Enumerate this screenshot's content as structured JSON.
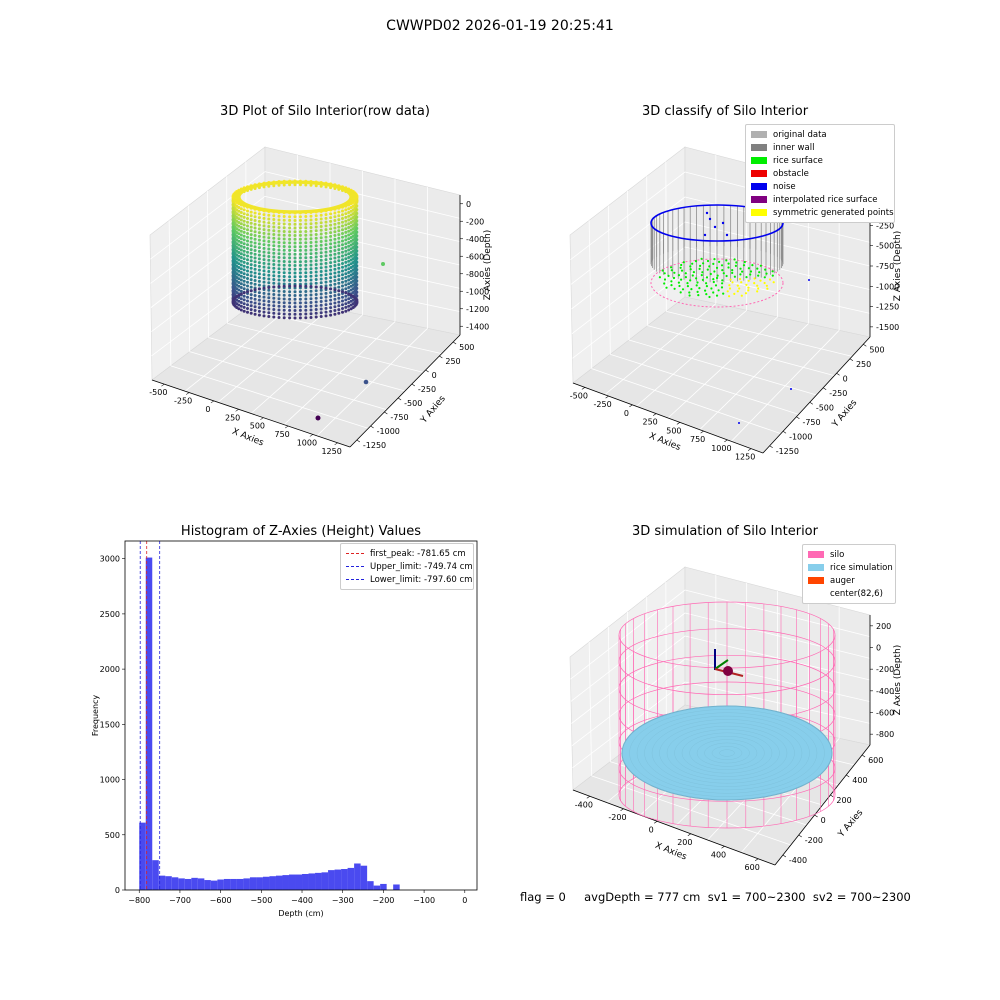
{
  "figure": {
    "suptitle": "CWWPD02 2026-01-19 20:25:41",
    "status_text": "flag = 0     avgDepth = 777 cm  sv1 = 700~2300  sv2 = 700~2300"
  },
  "chart_data": [
    {
      "type": "scatter",
      "title": "3D Plot of Silo Interior(row data)",
      "xlabel": "X Axies",
      "ylabel": "Y Axies",
      "zlabel": "Z Axies (Depth)",
      "x_ticks": [
        "-500",
        "-250",
        "0",
        "250",
        "500",
        "750",
        "1000",
        "1250"
      ],
      "y_ticks": [
        "500",
        "250",
        "0",
        "-250",
        "-500",
        "-750",
        "-1000",
        "-1250"
      ],
      "z_ticks": [
        "0",
        "-200",
        "-400",
        "-600",
        "-800",
        "-1000",
        "-1200",
        "-1400"
      ],
      "colormap": "viridis",
      "legend": "none",
      "grid": true
    },
    {
      "type": "scatter",
      "title": "3D classify of Silo Interior",
      "xlabel": "X Axies",
      "ylabel": "Y Axies",
      "zlabel": "Z Axies (Depth)",
      "x_ticks": [
        "-500",
        "-250",
        "0",
        "250",
        "500",
        "750",
        "1000",
        "1250"
      ],
      "y_ticks": [
        "500",
        "250",
        "0",
        "-250",
        "-500",
        "-750",
        "-1000",
        "-1250"
      ],
      "z_ticks": [
        "0",
        "-250",
        "-500",
        "-750",
        "-1000",
        "-1250",
        "-1500"
      ],
      "legend": "top-right",
      "grid": true,
      "series": [
        {
          "name": "original data",
          "color": "#b0b0b0"
        },
        {
          "name": "inner wall",
          "color": "#808080"
        },
        {
          "name": "rice surface",
          "color": "#00ee00"
        },
        {
          "name": "obstacle",
          "color": "#ee0000"
        },
        {
          "name": "noise",
          "color": "#0000ee"
        },
        {
          "name": "interpolated rice surface",
          "color": "#800080"
        },
        {
          "name": "symmetric generated points",
          "color": "#ffff00"
        }
      ]
    },
    {
      "type": "bar",
      "title": "Histogram of Z-Axies (Height) Values",
      "xlabel": "Depth (cm)",
      "ylabel": "Frequency",
      "xlim": [
        -835,
        30
      ],
      "ylim": [
        0,
        3160
      ],
      "x_ticks": [
        -800,
        -700,
        -600,
        -500,
        -400,
        -300,
        -200,
        -100,
        0
      ],
      "y_ticks": [
        0,
        500,
        1000,
        1500,
        2000,
        2500,
        3000
      ],
      "bar_color": "#4a4af0",
      "bin_width": 16,
      "bin_start": -800,
      "values": [
        610,
        3010,
        270,
        130,
        125,
        115,
        105,
        100,
        110,
        105,
        90,
        85,
        95,
        100,
        100,
        100,
        105,
        115,
        115,
        120,
        125,
        130,
        135,
        140,
        140,
        145,
        150,
        155,
        160,
        180,
        185,
        190,
        200,
        240,
        220,
        80,
        40,
        55,
        0,
        50
      ],
      "legend": "top-right",
      "grid": false,
      "reference_lines": [
        {
          "label": "first_peak: -781.65 cm",
          "x": -781.65,
          "color": "#dd2222"
        },
        {
          "label": "Upper_limit: -749.74 cm",
          "x": -749.74,
          "color": "#2222dd"
        },
        {
          "label": "Lower_limit: -797.60 cm",
          "x": -797.6,
          "color": "#2222dd"
        }
      ]
    },
    {
      "type": "scatter",
      "title": "3D simulation of Silo Interior",
      "xlabel": "X Axies",
      "ylabel": "Y Axies",
      "zlabel": "Z Axies (Depth)",
      "x_ticks": [
        "-400",
        "-200",
        "0",
        "200",
        "400",
        "600"
      ],
      "y_ticks": [
        "600",
        "400",
        "200",
        "0",
        "-200",
        "-400"
      ],
      "z_ticks": [
        "200",
        "0",
        "-200",
        "-400",
        "-600",
        "-800"
      ],
      "legend": "top-right",
      "grid": true,
      "series": [
        {
          "name": "silo",
          "color": "#ff69b4"
        },
        {
          "name": "rice simulation",
          "color": "#87ceeb"
        },
        {
          "name": "auger",
          "color": "#ff4500"
        },
        {
          "name": "center(82,6)",
          "color": "#ffffff"
        }
      ]
    }
  ]
}
